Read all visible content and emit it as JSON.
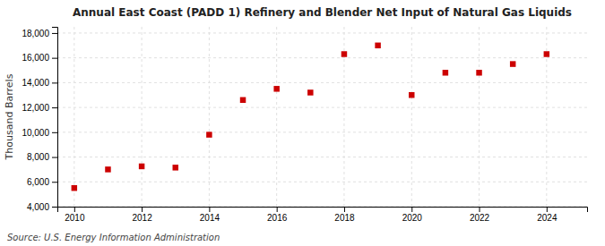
{
  "chart_data": {
    "type": "scatter",
    "title": "Annual East Coast (PADD 1) Refinery and Blender Net Input of Natural Gas Liquids",
    "ylabel": "Thousand Barrels",
    "source": "Source: U.S. Energy Information Administration",
    "x": [
      2010,
      2011,
      2012,
      2013,
      2014,
      2015,
      2016,
      2017,
      2018,
      2019,
      2020,
      2021,
      2022,
      2023,
      2024
    ],
    "values": [
      5500,
      7000,
      7250,
      7150,
      9800,
      12600,
      13500,
      13200,
      16300,
      17000,
      13000,
      14800,
      14800,
      15500,
      16300
    ],
    "color": "#cc0000",
    "marker": "square",
    "xlim": [
      2009.5,
      2025.2
    ],
    "xticks": [
      2010,
      2012,
      2014,
      2016,
      2018,
      2020,
      2022,
      2024
    ],
    "ylim": [
      4000,
      18500
    ],
    "yticks": [
      {
        "value": 4000,
        "label": "4,000"
      },
      {
        "value": 6000,
        "label": "6,000"
      },
      {
        "value": 8000,
        "label": "8,000"
      },
      {
        "value": 10000,
        "label": "10,000"
      },
      {
        "value": 12000,
        "label": "12,000"
      },
      {
        "value": 14000,
        "label": "14,000"
      },
      {
        "value": 16000,
        "label": "16,000"
      },
      {
        "value": 18000,
        "label": "18,000"
      }
    ],
    "grid": true
  }
}
